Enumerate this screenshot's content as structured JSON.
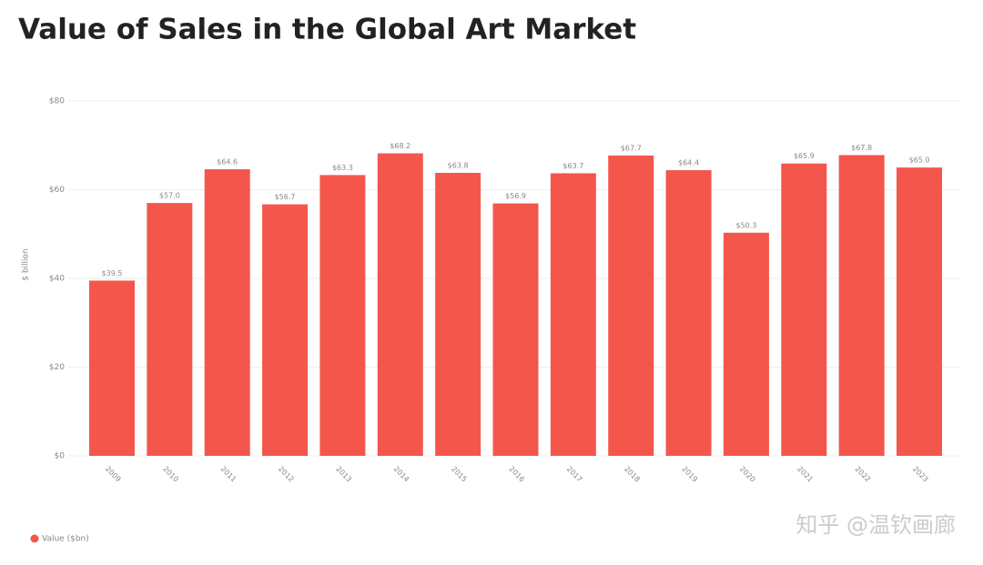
{
  "chart_data": {
    "type": "bar",
    "title": "Value of Sales in the Global Art Market",
    "y_label": "$ billion",
    "categories": [
      "2009",
      "2010",
      "2011",
      "2012",
      "2013",
      "2014",
      "2015",
      "2016",
      "2017",
      "2018",
      "2019",
      "2020",
      "2021",
      "2022",
      "2023"
    ],
    "series": [
      {
        "name": "Value ($bn)",
        "color": "#f4564c",
        "values": [
          39.5,
          57.0,
          64.6,
          56.7,
          63.3,
          68.2,
          63.8,
          56.9,
          63.7,
          67.7,
          64.4,
          50.3,
          65.9,
          67.8,
          65.0
        ],
        "value_labels": [
          "$39.5",
          "$57.0",
          "$64.6",
          "$56.7",
          "$63.3",
          "$68.2",
          "$63.8",
          "$56.9",
          "$63.7",
          "$67.7",
          "$64.4",
          "$50.3",
          "$65.9",
          "$67.8",
          "$65.0"
        ]
      }
    ],
    "ylim": [
      0,
      80
    ],
    "yticks": [
      {
        "value": 0,
        "label": "$0"
      },
      {
        "value": 20,
        "label": "$20"
      },
      {
        "value": 40,
        "label": "$40"
      },
      {
        "value": 60,
        "label": "$60"
      },
      {
        "value": 80,
        "label": "$80"
      }
    ],
    "grid": true,
    "legend": "bottom-left",
    "watermark": "知乎 @温钦画廊"
  }
}
